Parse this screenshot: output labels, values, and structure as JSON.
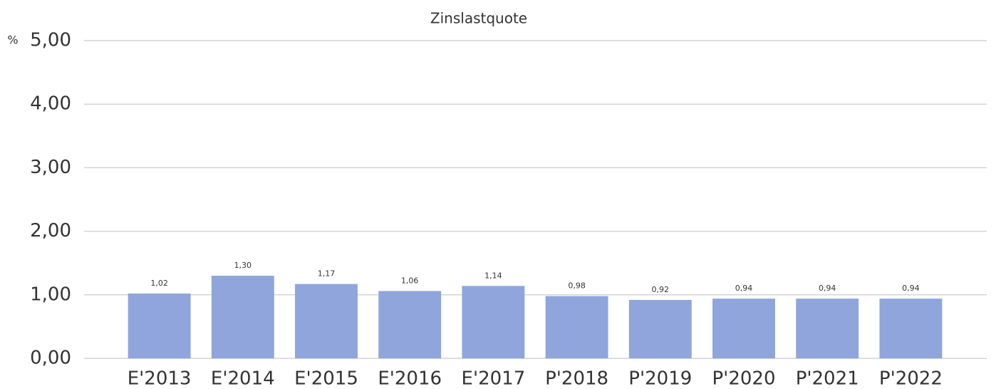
{
  "chart_data": {
    "type": "bar",
    "title": "Zinslastquote",
    "y_label": "%",
    "categories": [
      "E'2013",
      "E'2014",
      "E'2015",
      "E'2016",
      "E'2017",
      "P'2018",
      "P'2019",
      "P'2020",
      "P'2021",
      "P'2022"
    ],
    "values": [
      1.02,
      1.3,
      1.17,
      1.06,
      1.14,
      0.98,
      0.92,
      0.94,
      0.94,
      0.94
    ],
    "value_labels": [
      "1,02",
      "1,30",
      "1,17",
      "1,06",
      "1,14",
      "0,98",
      "0,92",
      "0,94",
      "0,94",
      "0,94"
    ],
    "color": "#8fa5dc",
    "ylim": [
      0,
      5
    ],
    "yticks": [
      {
        "value": 0,
        "label": "0,00"
      },
      {
        "value": 1,
        "label": "1,00"
      },
      {
        "value": 2,
        "label": "2,00"
      },
      {
        "value": 3,
        "label": "3,00"
      },
      {
        "value": 4,
        "label": "4,00"
      },
      {
        "value": 5,
        "label": "5,00"
      }
    ],
    "grid": true
  }
}
